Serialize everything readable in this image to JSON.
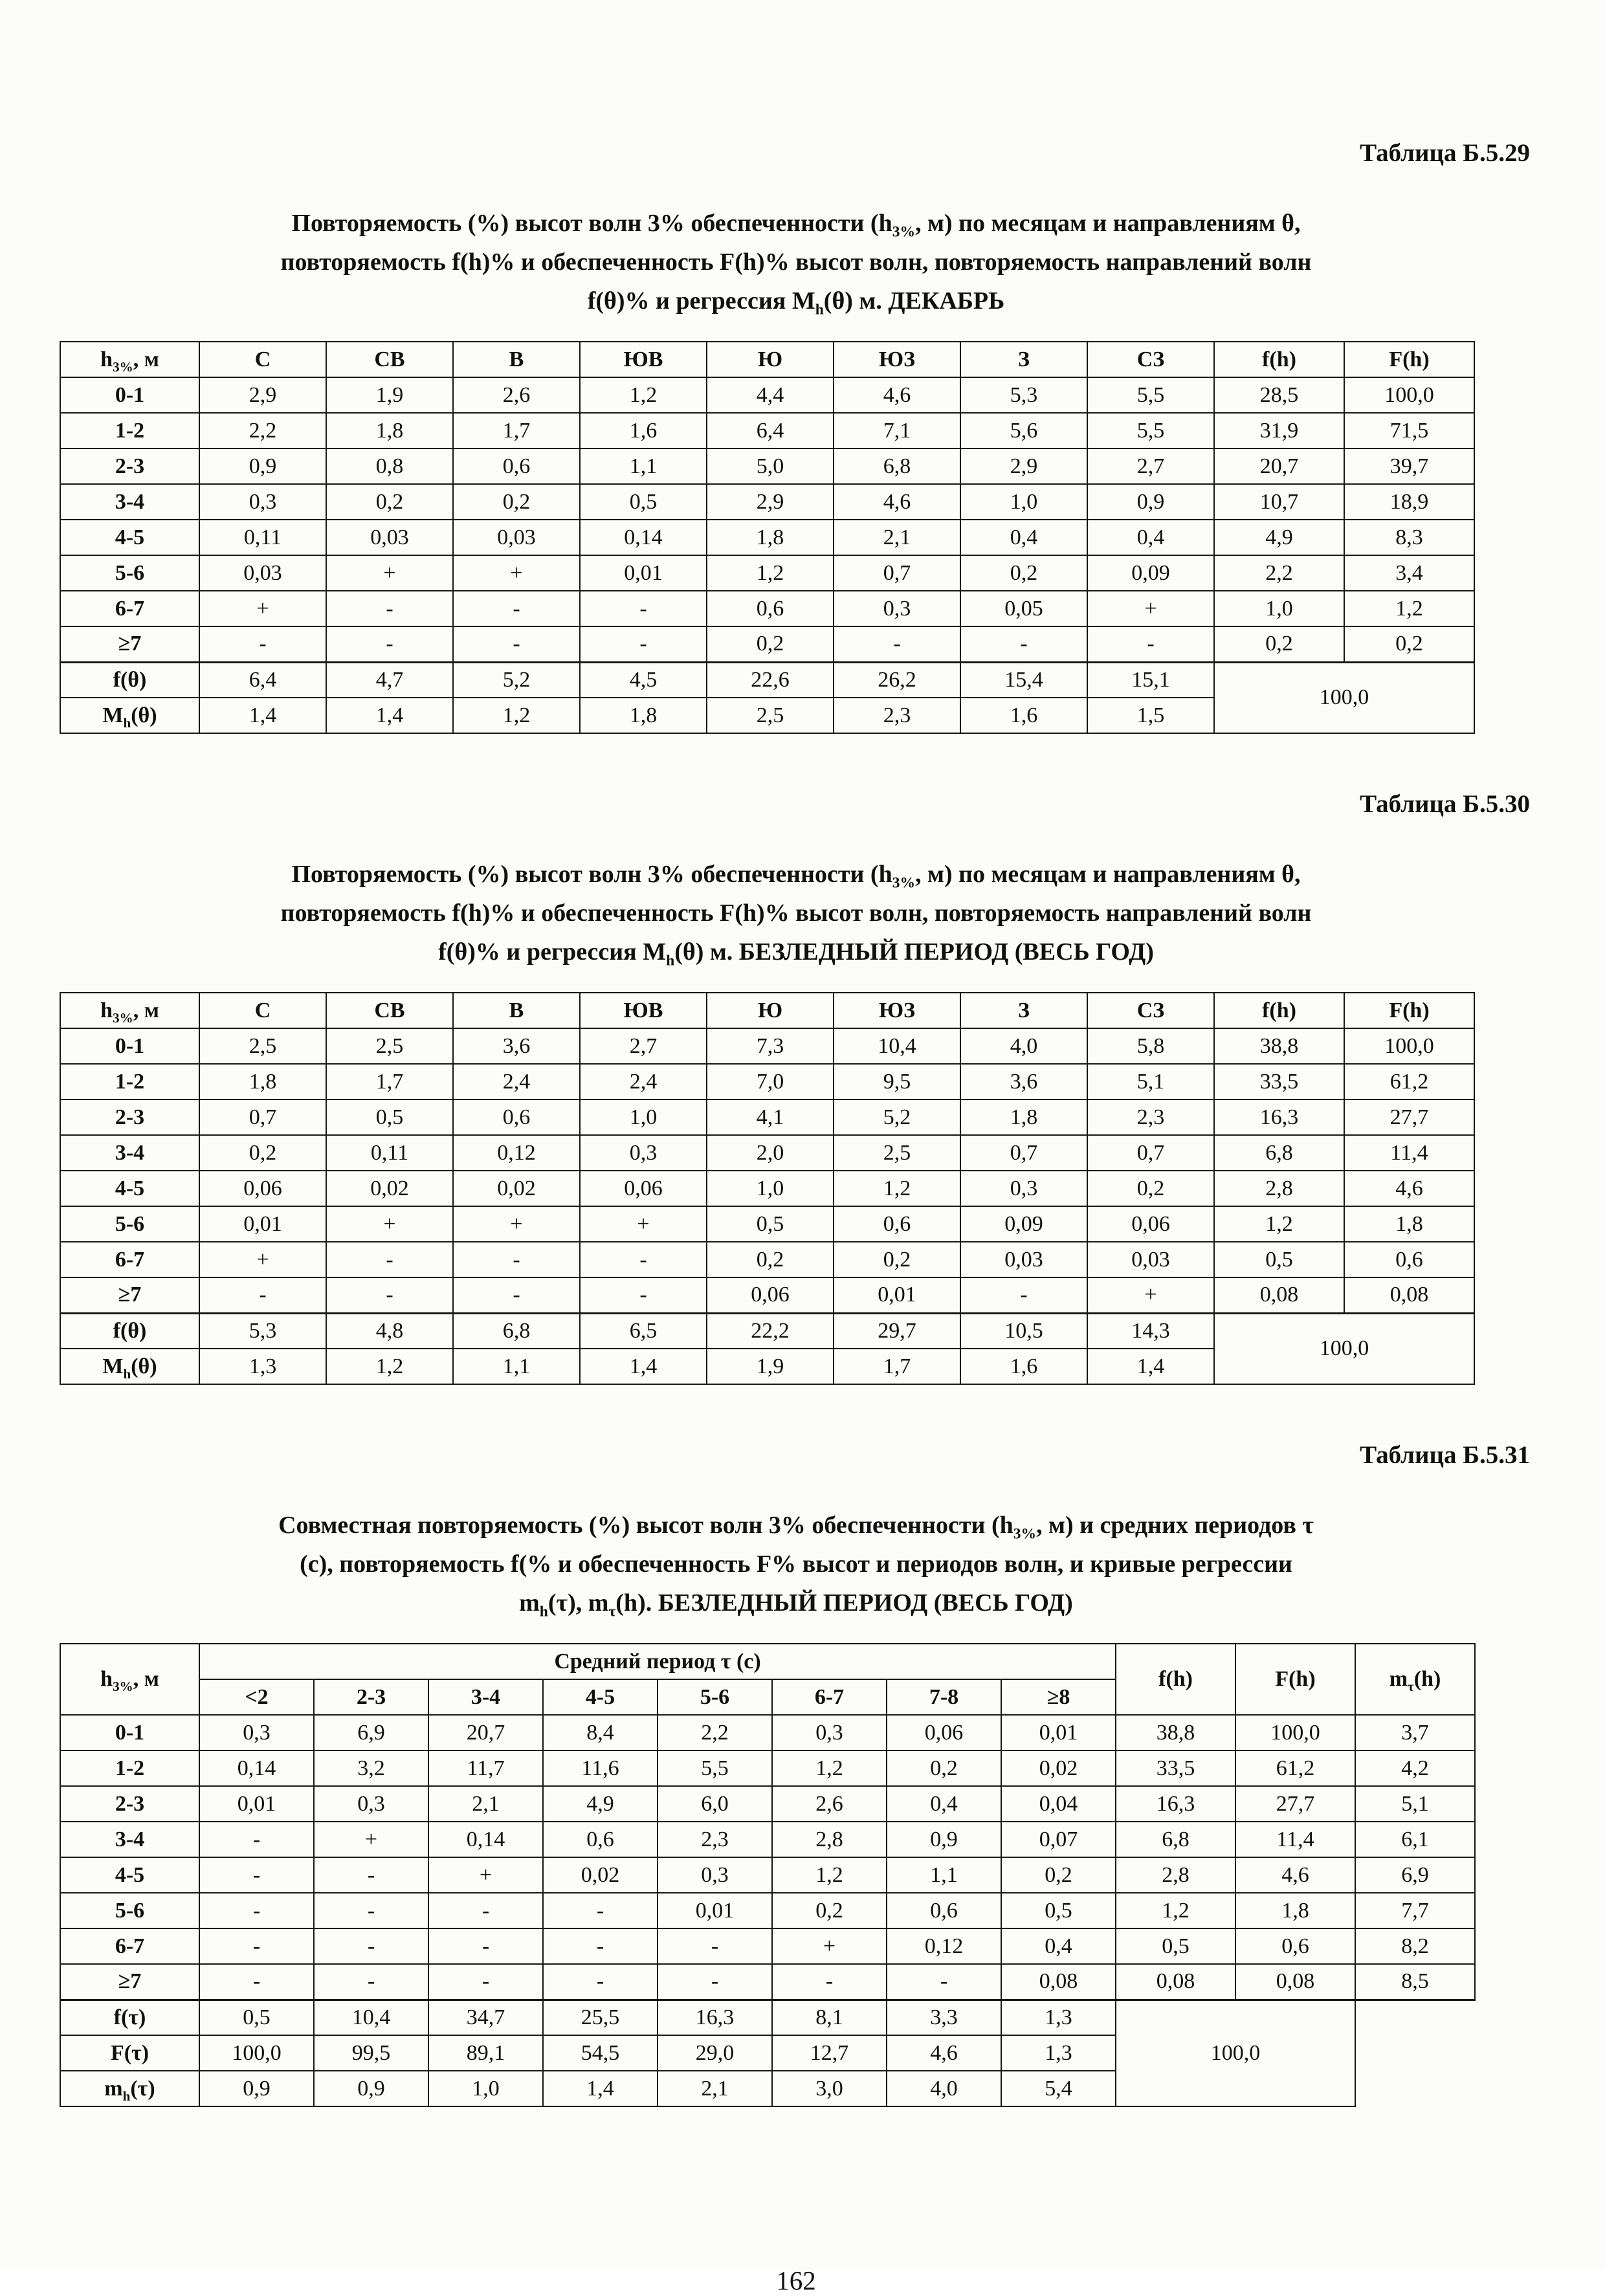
{
  "page": {
    "number": "162"
  },
  "tables": [
    {
      "caption": "Таблица Б.5.29",
      "title_lines": [
        "Повторяемость (%) высот волн 3% обеспеченности (h_{3%}, м) по месяцам и направлениям θ,",
        "повторяемость f(h)% и обеспеченность F(h)% высот волн, повторяемость направлений волн",
        "f(θ)% и регрессия M_{h}(θ) м. ДЕКАБРЬ"
      ],
      "header": [
        "h_{3%}, м",
        "С",
        "СВ",
        "В",
        "ЮВ",
        "Ю",
        "ЮЗ",
        "З",
        "СЗ",
        "f(h)",
        "F(h)"
      ],
      "rows": [
        {
          "label": "0-1",
          "cells": [
            "2,9",
            "1,9",
            "2,6",
            "1,2",
            "4,4",
            "4,6",
            "5,3",
            "5,5",
            "28,5",
            "100,0"
          ]
        },
        {
          "label": "1-2",
          "cells": [
            "2,2",
            "1,8",
            "1,7",
            "1,6",
            "6,4",
            "7,1",
            "5,6",
            "5,5",
            "31,9",
            "71,5"
          ]
        },
        {
          "label": "2-3",
          "cells": [
            "0,9",
            "0,8",
            "0,6",
            "1,1",
            "5,0",
            "6,8",
            "2,9",
            "2,7",
            "20,7",
            "39,7"
          ]
        },
        {
          "label": "3-4",
          "cells": [
            "0,3",
            "0,2",
            "0,2",
            "0,5",
            "2,9",
            "4,6",
            "1,0",
            "0,9",
            "10,7",
            "18,9"
          ]
        },
        {
          "label": "4-5",
          "cells": [
            "0,11",
            "0,03",
            "0,03",
            "0,14",
            "1,8",
            "2,1",
            "0,4",
            "0,4",
            "4,9",
            "8,3"
          ]
        },
        {
          "label": "5-6",
          "cells": [
            "0,03",
            "+",
            "+",
            "0,01",
            "1,2",
            "0,7",
            "0,2",
            "0,09",
            "2,2",
            "3,4"
          ]
        },
        {
          "label": "6-7",
          "cells": [
            "+",
            "-",
            "-",
            "-",
            "0,6",
            "0,3",
            "0,05",
            "+",
            "1,0",
            "1,2"
          ]
        },
        {
          "label": "≥7",
          "cells": [
            "-",
            "-",
            "-",
            "-",
            "0,2",
            "-",
            "-",
            "-",
            "0,2",
            "0,2"
          ]
        }
      ],
      "footer_rows": [
        {
          "label": "f(θ)",
          "cells": [
            "6,4",
            "4,7",
            "5,2",
            "4,5",
            "22,6",
            "26,2",
            "15,4",
            "15,1"
          ]
        },
        {
          "label": "M_{h}(θ)",
          "cells": [
            "1,4",
            "1,4",
            "1,2",
            "1,8",
            "2,5",
            "2,3",
            "1,6",
            "1,5"
          ]
        }
      ],
      "footer_merged": "100,0"
    },
    {
      "caption": "Таблица Б.5.30",
      "title_lines": [
        "Повторяемость (%) высот волн 3% обеспеченности (h_{3%}, м) по месяцам и направлениям θ,",
        "повторяемость f(h)% и обеспеченность F(h)% высот волн, повторяемость направлений волн",
        "f(θ)% и регрессия M_{h}(θ) м. БЕЗЛЕДНЫЙ ПЕРИОД (ВЕСЬ ГОД)"
      ],
      "header": [
        "h_{3%}, м",
        "С",
        "СВ",
        "В",
        "ЮВ",
        "Ю",
        "ЮЗ",
        "З",
        "СЗ",
        "f(h)",
        "F(h)"
      ],
      "rows": [
        {
          "label": "0-1",
          "cells": [
            "2,5",
            "2,5",
            "3,6",
            "2,7",
            "7,3",
            "10,4",
            "4,0",
            "5,8",
            "38,8",
            "100,0"
          ]
        },
        {
          "label": "1-2",
          "cells": [
            "1,8",
            "1,7",
            "2,4",
            "2,4",
            "7,0",
            "9,5",
            "3,6",
            "5,1",
            "33,5",
            "61,2"
          ]
        },
        {
          "label": "2-3",
          "cells": [
            "0,7",
            "0,5",
            "0,6",
            "1,0",
            "4,1",
            "5,2",
            "1,8",
            "2,3",
            "16,3",
            "27,7"
          ]
        },
        {
          "label": "3-4",
          "cells": [
            "0,2",
            "0,11",
            "0,12",
            "0,3",
            "2,0",
            "2,5",
            "0,7",
            "0,7",
            "6,8",
            "11,4"
          ]
        },
        {
          "label": "4-5",
          "cells": [
            "0,06",
            "0,02",
            "0,02",
            "0,06",
            "1,0",
            "1,2",
            "0,3",
            "0,2",
            "2,8",
            "4,6"
          ]
        },
        {
          "label": "5-6",
          "cells": [
            "0,01",
            "+",
            "+",
            "+",
            "0,5",
            "0,6",
            "0,09",
            "0,06",
            "1,2",
            "1,8"
          ]
        },
        {
          "label": "6-7",
          "cells": [
            "+",
            "-",
            "-",
            "-",
            "0,2",
            "0,2",
            "0,03",
            "0,03",
            "0,5",
            "0,6"
          ]
        },
        {
          "label": "≥7",
          "cells": [
            "-",
            "-",
            "-",
            "-",
            "0,06",
            "0,01",
            "-",
            "+",
            "0,08",
            "0,08"
          ]
        }
      ],
      "footer_rows": [
        {
          "label": "f(θ)",
          "cells": [
            "5,3",
            "4,8",
            "6,8",
            "6,5",
            "22,2",
            "29,7",
            "10,5",
            "14,3"
          ]
        },
        {
          "label": "M_{h}(θ)",
          "cells": [
            "1,3",
            "1,2",
            "1,1",
            "1,4",
            "1,9",
            "1,7",
            "1,6",
            "1,4"
          ]
        }
      ],
      "footer_merged": "100,0"
    },
    {
      "caption": "Таблица Б.5.31",
      "title_lines": [
        "Совместная повторяемость (%) высот волн 3% обеспеченности (h_{3%}, м) и средних периодов τ",
        "(с), повторяемость f(% и обеспеченность F% высот и периодов волн, и кривые регрессии",
        "m_{h}(τ), m_{τ}(h). БЕЗЛЕДНЫЙ ПЕРИОД (ВЕСЬ ГОД)"
      ],
      "corner": "h_{3%}, м",
      "header_group": "Средний период τ (с)",
      "sub_header": [
        "<2",
        "2-3",
        "3-4",
        "4-5",
        "5-6",
        "6-7",
        "7-8",
        "≥8"
      ],
      "right_headers": [
        "f(h)",
        "F(h)",
        "m_{τ}(h)"
      ],
      "rows": [
        {
          "label": "0-1",
          "cells": [
            "0,3",
            "6,9",
            "20,7",
            "8,4",
            "2,2",
            "0,3",
            "0,06",
            "0,01",
            "38,8",
            "100,0",
            "3,7"
          ]
        },
        {
          "label": "1-2",
          "cells": [
            "0,14",
            "3,2",
            "11,7",
            "11,6",
            "5,5",
            "1,2",
            "0,2",
            "0,02",
            "33,5",
            "61,2",
            "4,2"
          ]
        },
        {
          "label": "2-3",
          "cells": [
            "0,01",
            "0,3",
            "2,1",
            "4,9",
            "6,0",
            "2,6",
            "0,4",
            "0,04",
            "16,3",
            "27,7",
            "5,1"
          ]
        },
        {
          "label": "3-4",
          "cells": [
            "-",
            "+",
            "0,14",
            "0,6",
            "2,3",
            "2,8",
            "0,9",
            "0,07",
            "6,8",
            "11,4",
            "6,1"
          ]
        },
        {
          "label": "4-5",
          "cells": [
            "-",
            "-",
            "+",
            "0,02",
            "0,3",
            "1,2",
            "1,1",
            "0,2",
            "2,8",
            "4,6",
            "6,9"
          ]
        },
        {
          "label": "5-6",
          "cells": [
            "-",
            "-",
            "-",
            "-",
            "0,01",
            "0,2",
            "0,6",
            "0,5",
            "1,2",
            "1,8",
            "7,7"
          ]
        },
        {
          "label": "6-7",
          "cells": [
            "-",
            "-",
            "-",
            "-",
            "-",
            "+",
            "0,12",
            "0,4",
            "0,5",
            "0,6",
            "8,2"
          ]
        },
        {
          "label": "≥7",
          "cells": [
            "-",
            "-",
            "-",
            "-",
            "-",
            "-",
            "-",
            "0,08",
            "0,08",
            "0,08",
            "8,5"
          ]
        }
      ],
      "footer_rows": [
        {
          "label": "f(τ)",
          "cells": [
            "0,5",
            "10,4",
            "34,7",
            "25,5",
            "16,3",
            "8,1",
            "3,3",
            "1,3"
          ]
        },
        {
          "label": "F(τ)",
          "cells": [
            "100,0",
            "99,5",
            "89,1",
            "54,5",
            "29,0",
            "12,7",
            "4,6",
            "1,3"
          ]
        },
        {
          "label": "m_{h}(τ)",
          "cells": [
            "0,9",
            "0,9",
            "1,0",
            "1,4",
            "2,1",
            "3,0",
            "4,0",
            "5,4"
          ]
        }
      ],
      "footer_merged": "100,0"
    }
  ]
}
